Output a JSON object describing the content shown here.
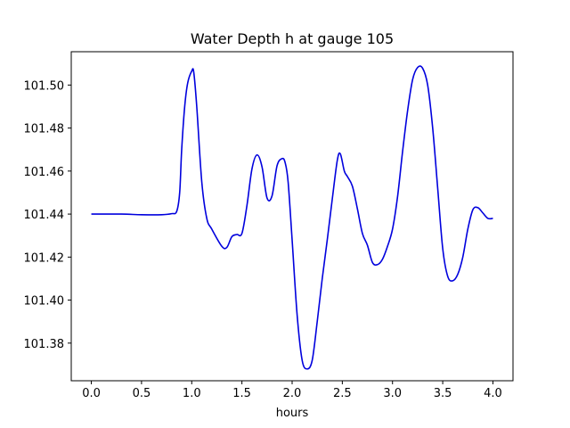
{
  "chart_data": {
    "type": "line",
    "title": "Water Depth h at gauge 105",
    "xlabel": "hours",
    "ylabel": "",
    "xlim": [
      -0.2,
      4.2
    ],
    "ylim": [
      101.3625,
      101.5155
    ],
    "xticks": [
      0.0,
      0.5,
      1.0,
      1.5,
      2.0,
      2.5,
      3.0,
      3.5,
      4.0
    ],
    "xtick_labels": [
      "0.0",
      "0.5",
      "1.0",
      "1.5",
      "2.0",
      "2.5",
      "3.0",
      "3.5",
      "4.0"
    ],
    "yticks": [
      101.38,
      101.4,
      101.42,
      101.44,
      101.46,
      101.48,
      101.5
    ],
    "ytick_labels": [
      "101.38",
      "101.40",
      "101.42",
      "101.44",
      "101.46",
      "101.48",
      "101.50"
    ],
    "grid": false,
    "series": [
      {
        "color": "#0000dd",
        "x": [
          0.0,
          0.3,
          0.5,
          0.7,
          0.8,
          0.85,
          0.88,
          0.9,
          0.93,
          0.96,
          1.0,
          1.02,
          1.05,
          1.1,
          1.15,
          1.2,
          1.3,
          1.35,
          1.4,
          1.45,
          1.5,
          1.55,
          1.6,
          1.65,
          1.7,
          1.75,
          1.8,
          1.85,
          1.9,
          1.93,
          1.96,
          2.0,
          2.05,
          2.1,
          2.15,
          2.2,
          2.25,
          2.3,
          2.35,
          2.4,
          2.45,
          2.48,
          2.52,
          2.55,
          2.6,
          2.65,
          2.7,
          2.75,
          2.8,
          2.85,
          2.9,
          2.95,
          3.0,
          3.05,
          3.1,
          3.15,
          3.2,
          3.25,
          3.3,
          3.35,
          3.4,
          3.45,
          3.5,
          3.55,
          3.6,
          3.65,
          3.7,
          3.75,
          3.8,
          3.85,
          3.9,
          3.95,
          4.0
        ],
        "y": [
          101.44,
          101.44,
          101.4397,
          101.4397,
          101.4402,
          101.4412,
          101.45,
          101.47,
          101.49,
          101.501,
          101.5065,
          101.506,
          101.49,
          101.455,
          101.438,
          101.433,
          101.425,
          101.4245,
          101.4295,
          101.4305,
          101.431,
          101.444,
          101.461,
          101.4675,
          101.462,
          101.4475,
          101.4485,
          101.4625,
          101.4658,
          101.464,
          101.455,
          101.428,
          101.393,
          101.372,
          101.368,
          101.372,
          101.39,
          101.41,
          101.428,
          101.447,
          101.465,
          101.468,
          101.46,
          101.4575,
          101.453,
          101.4425,
          101.431,
          101.4255,
          101.4175,
          101.4165,
          101.419,
          101.425,
          101.433,
          101.448,
          101.469,
          101.488,
          101.5025,
          101.5082,
          101.5078,
          101.5,
          101.48,
          101.452,
          101.424,
          101.411,
          101.409,
          101.412,
          101.42,
          101.433,
          101.442,
          101.443,
          101.4405,
          101.438,
          101.438
        ]
      }
    ]
  }
}
